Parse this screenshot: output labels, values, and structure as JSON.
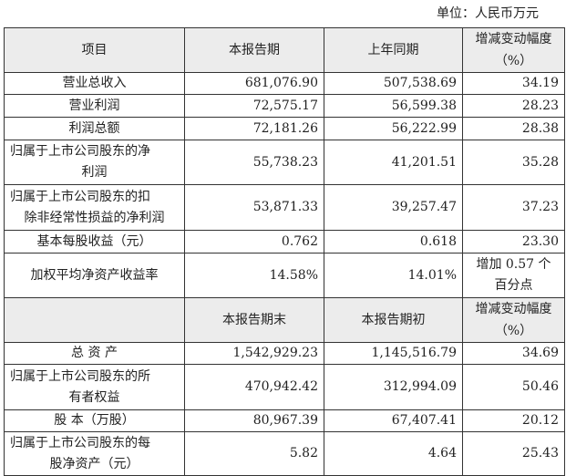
{
  "unit_label": "单位：人民币万元",
  "header1": [
    "项目",
    "本报告期",
    "上年同期",
    "增减变动幅度（%）"
  ],
  "header1_change": [
    "增减变动幅度",
    "（%）"
  ],
  "rows1": [
    {
      "item": [
        "营业总收入"
      ],
      "cur": "681,076.90",
      "prev": "507,538.69",
      "chg": [
        "34.19"
      ]
    },
    {
      "item": [
        "营业利润"
      ],
      "cur": "72,575.17",
      "prev": "56,599.38",
      "chg": [
        "28.23"
      ]
    },
    {
      "item": [
        "利润总额"
      ],
      "cur": "72,181.26",
      "prev": "56,222.99",
      "chg": [
        "28.38"
      ]
    },
    {
      "item": [
        "归属于上市公司股东的净",
        "利润"
      ],
      "cur": "55,738.23",
      "prev": "41,201.51",
      "chg": [
        "35.28"
      ]
    },
    {
      "item": [
        "归属于上市公司股东的扣",
        "除非经常性损益的净利润"
      ],
      "cur": "53,871.33",
      "prev": "39,257.47",
      "chg": [
        "37.23"
      ]
    },
    {
      "item": [
        "基本每股收益（元）"
      ],
      "cur": "0.762",
      "prev": "0.618",
      "chg": [
        "23.30"
      ]
    },
    {
      "item": [
        "加权平均净资产收益率"
      ],
      "cur": "14.58%",
      "prev": "14.01%",
      "chg": [
        "增加 0.57 个",
        "百分点"
      ]
    }
  ],
  "header2": [
    "",
    "本报告期末",
    "本报告期初"
  ],
  "header2_change": [
    "增减变动幅度",
    "（%）"
  ],
  "rows2": [
    {
      "item": [
        "总 资 产"
      ],
      "cur": "1,542,929.23",
      "prev": "1,145,516.79",
      "chg": [
        "34.69"
      ]
    },
    {
      "item": [
        "归属于上市公司股东的所",
        "有者权益"
      ],
      "cur": "470,942.42",
      "prev": "312,994.09",
      "chg": [
        "50.46"
      ]
    },
    {
      "item": [
        "股 本（万股）"
      ],
      "cur": "80,967.39",
      "prev": "67,407.41",
      "chg": [
        "20.12"
      ]
    },
    {
      "item": [
        "归属于上市公司股东的每",
        "股净资产（元）"
      ],
      "cur": "5.82",
      "prev": "4.64",
      "chg": [
        "25.43"
      ]
    }
  ]
}
